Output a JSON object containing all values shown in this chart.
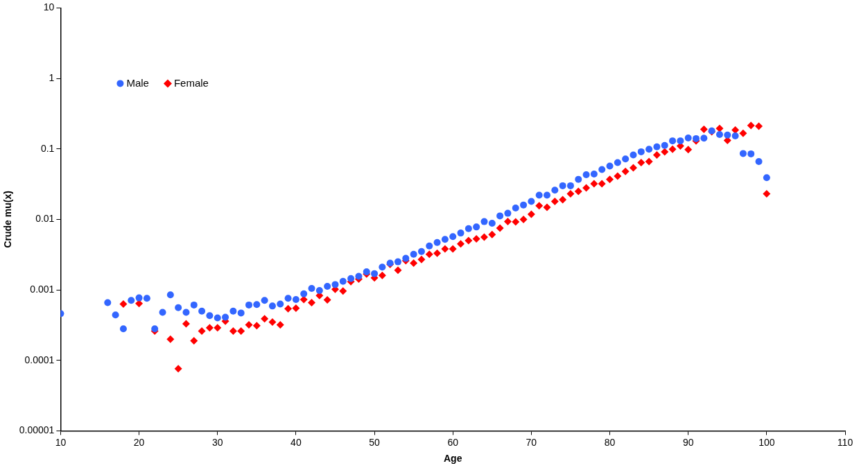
{
  "chart_data": {
    "type": "scatter",
    "xlabel": "Age",
    "ylabel": "Crude mu(x)",
    "log": "y",
    "grid": false,
    "legend": "top left",
    "xlim": [
      10,
      110
    ],
    "xticks": [
      10,
      20,
      30,
      40,
      50,
      60,
      70,
      80,
      90,
      100,
      110
    ],
    "ylim": [
      1e-05,
      10
    ],
    "yticks": [
      {
        "value": 1e-05,
        "label": "0.00001"
      },
      0.0001,
      0.001,
      0.01,
      0.1,
      1,
      10
    ],
    "series": [
      {
        "name": "Male",
        "color": "#3366ff",
        "marker": "circle",
        "x": [
          10,
          16,
          17,
          18,
          19,
          20,
          21,
          22,
          23,
          24,
          25,
          26,
          27,
          28,
          29,
          30,
          31,
          32,
          33,
          34,
          35,
          36,
          37,
          38,
          39,
          40,
          41,
          42,
          43,
          44,
          45,
          46,
          47,
          48,
          49,
          50,
          51,
          52,
          53,
          54,
          55,
          56,
          57,
          58,
          59,
          60,
          61,
          62,
          63,
          64,
          65,
          66,
          67,
          68,
          69,
          70,
          71,
          72,
          73,
          74,
          75,
          76,
          77,
          78,
          79,
          80,
          81,
          82,
          83,
          84,
          85,
          86,
          87,
          88,
          89,
          90,
          91,
          92,
          93,
          94,
          95,
          96,
          97,
          98,
          99,
          100
        ],
        "values": [
          0.00046,
          0.00066,
          0.00044,
          0.00028,
          0.00071,
          0.00077,
          0.00076,
          0.00028,
          0.00048,
          0.00085,
          0.00056,
          0.00048,
          0.00061,
          0.0005,
          0.00043,
          0.0004,
          0.00041,
          0.0005,
          0.00047,
          0.00061,
          0.00062,
          0.00071,
          0.00059,
          0.00063,
          0.00076,
          0.00073,
          0.00088,
          0.00105,
          0.00098,
          0.00112,
          0.00119,
          0.00132,
          0.00145,
          0.00156,
          0.0018,
          0.0017,
          0.0021,
          0.0024,
          0.0025,
          0.0028,
          0.0032,
          0.0035,
          0.0042,
          0.0047,
          0.0052,
          0.0057,
          0.0064,
          0.0074,
          0.0078,
          0.0093,
          0.0088,
          0.0112,
          0.0122,
          0.0145,
          0.016,
          0.018,
          0.022,
          0.022,
          0.026,
          0.03,
          0.03,
          0.037,
          0.043,
          0.044,
          0.051,
          0.057,
          0.064,
          0.072,
          0.082,
          0.091,
          0.099,
          0.107,
          0.112,
          0.13,
          0.13,
          0.143,
          0.14,
          0.142,
          0.18,
          0.16,
          0.157,
          0.153,
          0.086,
          0.085,
          0.066,
          0.039
        ]
      },
      {
        "name": "Female",
        "color": "#ff0000",
        "marker": "diamond",
        "x": [
          18,
          20,
          22,
          24,
          25,
          26,
          27,
          28,
          29,
          30,
          31,
          32,
          33,
          34,
          35,
          36,
          37,
          38,
          39,
          40,
          41,
          42,
          43,
          44,
          45,
          46,
          47,
          48,
          49,
          50,
          51,
          52,
          53,
          54,
          55,
          56,
          57,
          58,
          59,
          60,
          61,
          62,
          63,
          64,
          65,
          66,
          67,
          68,
          69,
          70,
          71,
          72,
          73,
          74,
          75,
          76,
          77,
          78,
          79,
          80,
          81,
          82,
          83,
          84,
          85,
          86,
          87,
          88,
          89,
          90,
          91,
          92,
          93,
          94,
          95,
          96,
          97,
          98,
          99,
          100
        ],
        "values": [
          0.00063,
          0.00064,
          0.00026,
          0.0002,
          7.6e-05,
          0.00033,
          0.00019,
          0.00026,
          0.00029,
          0.00029,
          0.00036,
          0.00026,
          0.00026,
          0.00032,
          0.00031,
          0.00039,
          0.00035,
          0.00032,
          0.00054,
          0.00055,
          0.00073,
          0.00066,
          0.00083,
          0.00072,
          0.00102,
          0.00096,
          0.00131,
          0.00142,
          0.00168,
          0.00148,
          0.0016,
          0.0023,
          0.0019,
          0.0026,
          0.0024,
          0.0027,
          0.0032,
          0.0033,
          0.0038,
          0.0038,
          0.0045,
          0.005,
          0.0053,
          0.0056,
          0.0061,
          0.0075,
          0.0093,
          0.0092,
          0.01,
          0.0118,
          0.0156,
          0.0148,
          0.018,
          0.019,
          0.023,
          0.025,
          0.028,
          0.032,
          0.032,
          0.037,
          0.041,
          0.048,
          0.054,
          0.064,
          0.066,
          0.082,
          0.091,
          0.099,
          0.11,
          0.098,
          0.13,
          0.19,
          0.175,
          0.195,
          0.132,
          0.185,
          0.166,
          0.215,
          0.21,
          0.023
        ]
      }
    ]
  }
}
